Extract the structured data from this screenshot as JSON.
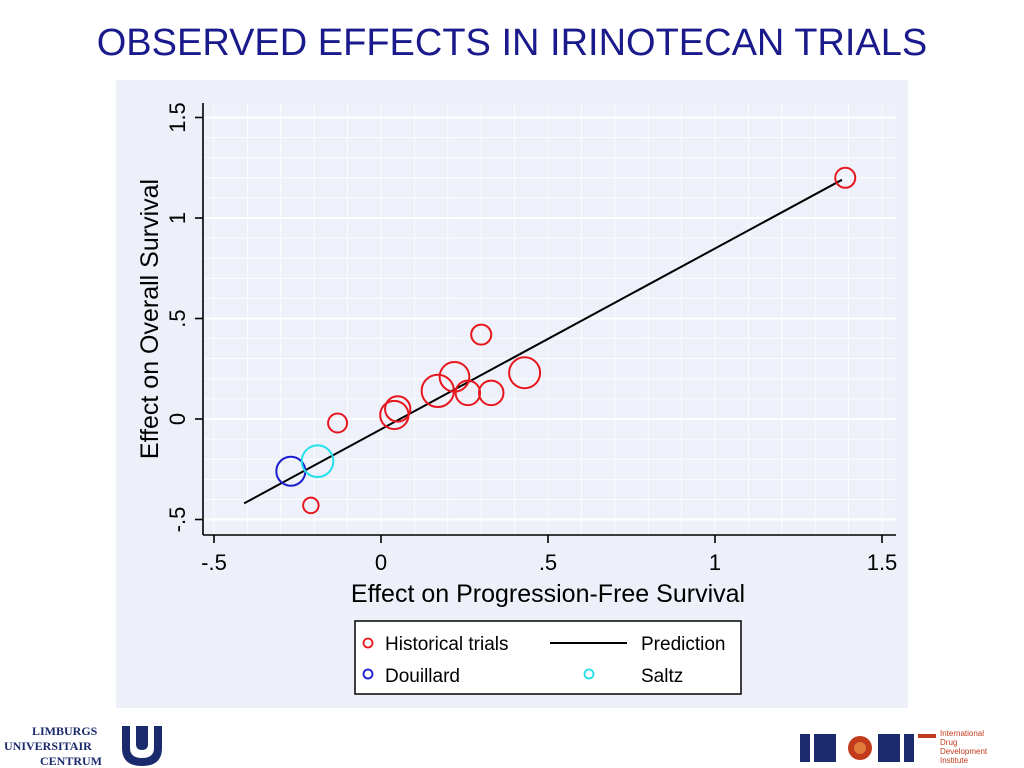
{
  "slide": {
    "title": "OBSERVED EFFECTS IN IRINOTECAN TRIALS"
  },
  "chart_data": {
    "type": "scatter",
    "xlabel": "Effect on Progression-Free Survival",
    "ylabel": "Effect on Overall Survival",
    "xlim": [
      -0.5,
      1.5
    ],
    "ylim": [
      -0.5,
      1.5
    ],
    "xticks": [
      -0.5,
      0,
      0.5,
      1,
      1.5
    ],
    "xtick_labels": [
      "-.5",
      "0",
      ".5",
      "1",
      "1.5"
    ],
    "yticks": [
      -0.5,
      0,
      0.5,
      1,
      1.5
    ],
    "ytick_labels": [
      "-.5",
      "0",
      ".5",
      "1",
      "1.5"
    ],
    "grid": true,
    "legend_position": "bottom",
    "series": [
      {
        "name": "Historical trials",
        "color": "#e8161e",
        "marker": "hollow-circle",
        "points": [
          {
            "x": 1.39,
            "y": 1.2,
            "w": 1.0
          },
          {
            "x": 0.3,
            "y": 0.42,
            "w": 1.0
          },
          {
            "x": 0.43,
            "y": 0.23,
            "w": 2.4
          },
          {
            "x": 0.22,
            "y": 0.21,
            "w": 2.2
          },
          {
            "x": 0.17,
            "y": 0.14,
            "w": 2.6
          },
          {
            "x": 0.26,
            "y": 0.13,
            "w": 1.5
          },
          {
            "x": 0.33,
            "y": 0.13,
            "w": 1.5
          },
          {
            "x": 0.05,
            "y": 0.05,
            "w": 1.6
          },
          {
            "x": 0.04,
            "y": 0.02,
            "w": 2.0
          },
          {
            "x": -0.13,
            "y": -0.02,
            "w": 0.9
          },
          {
            "x": -0.21,
            "y": -0.43,
            "w": 0.6
          }
        ]
      },
      {
        "name": "Douillard",
        "color": "#1c1ccf",
        "marker": "hollow-circle",
        "points": [
          {
            "x": -0.27,
            "y": -0.26,
            "w": 2.1
          }
        ]
      },
      {
        "name": "Saltz",
        "color": "#22e0ea",
        "marker": "hollow-circle",
        "points": [
          {
            "x": -0.19,
            "y": -0.21,
            "w": 2.5
          }
        ]
      },
      {
        "name": "Prediction",
        "color": "#000000",
        "type": "line",
        "points": [
          {
            "x": -0.41,
            "y": -0.42
          },
          {
            "x": 1.38,
            "y": 1.19
          }
        ]
      }
    ],
    "legend": {
      "historical": "Historical trials",
      "prediction": "Prediction",
      "douillard": "Douillard",
      "saltz": "Saltz"
    }
  },
  "logos": {
    "left": {
      "line1": "LIMBURGS",
      "line2": "UNIVERSITAIR",
      "line3": "CENTRUM"
    },
    "right": {
      "mark": "IDDI",
      "line1": "International",
      "line2": "Drug",
      "line3": "Development",
      "line4": "Institute"
    }
  }
}
